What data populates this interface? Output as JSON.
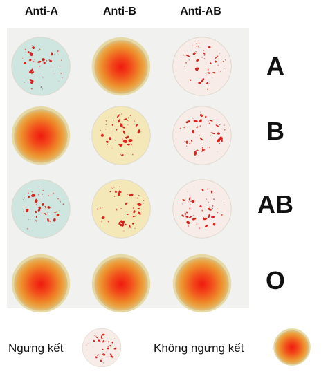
{
  "columns": [
    "Anti-A",
    "Anti-B",
    "Anti-AB"
  ],
  "rows": [
    {
      "label": "A",
      "results": [
        "agglutinated",
        "none",
        "agglutinated"
      ]
    },
    {
      "label": "B",
      "results": [
        "none",
        "agglutinated",
        "agglutinated"
      ]
    },
    {
      "label": "AB",
      "results": [
        "agglutinated",
        "agglutinated",
        "agglutinated"
      ]
    },
    {
      "label": "O",
      "results": [
        "none",
        "none",
        "none"
      ]
    }
  ],
  "reagent_background_colors": {
    "Anti-A": "#cfe5e0",
    "Anti-B": "#f5e8b8",
    "Anti-AB": "#f7ece8"
  },
  "clump_color": "#d8231c",
  "diffuse_center_color": "#f01a10",
  "legend": {
    "agglutination_label": "Ngưng kết",
    "no_agglutination_label": "Không ngưng kết"
  }
}
